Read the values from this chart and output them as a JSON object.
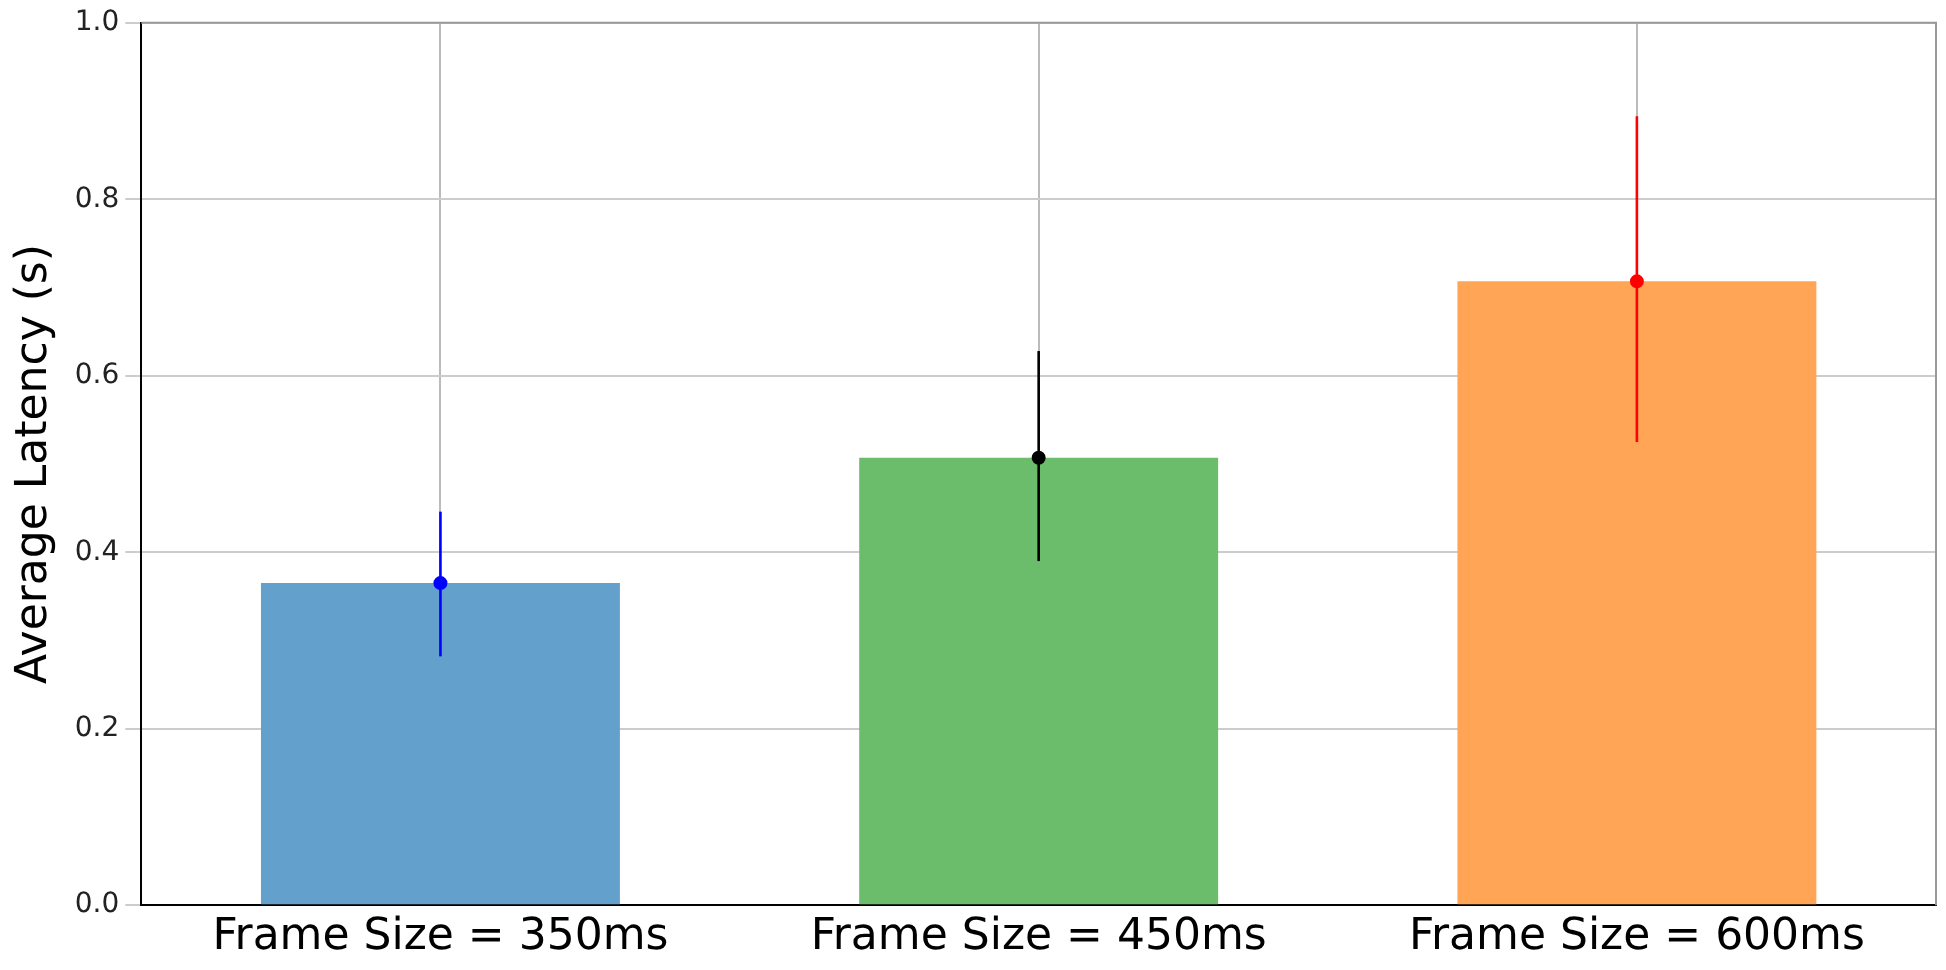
{
  "chart_data": {
    "type": "bar",
    "ylabel": "Average Latency (s)",
    "categories": [
      "Frame Size = 350ms",
      "Frame Size = 450ms",
      "Frame Size = 600ms"
    ],
    "series": [
      {
        "colors": [
          "#63a0cb",
          "#6bbd6b",
          "#ffa555"
        ],
        "values": [
          0.365,
          0.507,
          0.707
        ]
      },
      {
        "type": "scatter",
        "x": [
          "Frame Size = 350ms",
          "Frame Size = 450ms",
          "Frame Size = 600ms"
        ],
        "colors": [
          "#0000ff",
          "#000000",
          "#ff0000"
        ],
        "values": [
          0.365,
          0.507,
          0.707
        ],
        "errors": [
          [
            0.282,
            0.446
          ],
          [
            0.39,
            0.628
          ],
          [
            0.525,
            0.894
          ]
        ]
      }
    ],
    "ylim": [
      0,
      1
    ],
    "yticks": [
      {
        "value": 0,
        "label": "0.0"
      },
      {
        "value": 0.2,
        "label": "0.2"
      },
      {
        "value": 0.4,
        "label": "0.4"
      },
      {
        "value": 0.6,
        "label": "0.6"
      },
      {
        "value": 0.8,
        "label": "0.8"
      },
      {
        "value": 1,
        "label": "1.0"
      }
    ],
    "grid": true,
    "legend": false,
    "marker": "circle"
  }
}
